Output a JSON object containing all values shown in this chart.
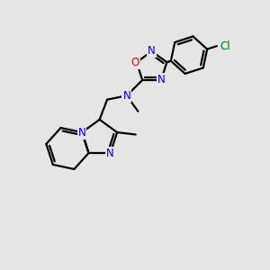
{
  "bg_color": "#e5e5e5",
  "bond_color": "#000000",
  "bond_width": 1.6,
  "atom_colors": {
    "N": "#0000ff",
    "O": "#ff0000",
    "Cl": "#008000",
    "C": "#000000"
  },
  "figure_size": [
    3.0,
    3.0
  ],
  "dpi": 100,
  "xlim": [
    0,
    10
  ],
  "ylim": [
    0,
    10
  ]
}
